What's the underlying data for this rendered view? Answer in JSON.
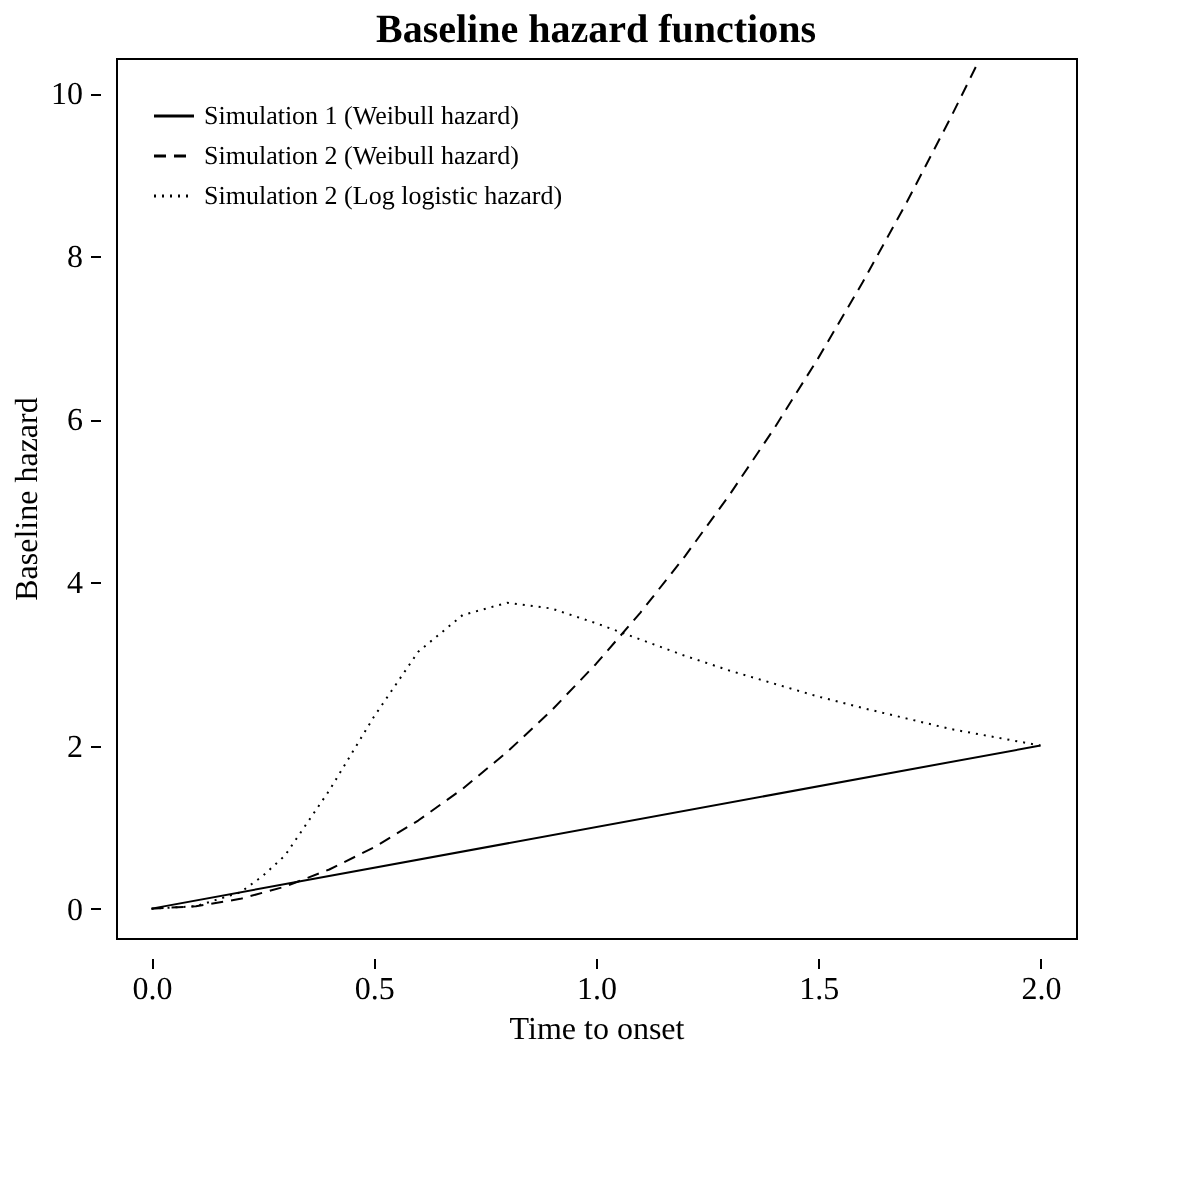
{
  "chart_data": {
    "type": "line",
    "title": "Baseline hazard functions",
    "xlabel": "Time to onset",
    "ylabel": "Baseline hazard",
    "xlim": [
      -0.08,
      2.08
    ],
    "xticks": [
      {
        "value": 0,
        "label": "0.0"
      },
      0.5,
      {
        "value": 1,
        "label": "1.0"
      },
      1.5,
      {
        "value": 2,
        "label": "2.0"
      }
    ],
    "ylim": [
      -0.36,
      10.43
    ],
    "yticks": [
      0,
      2,
      4,
      6,
      8,
      10
    ],
    "grid": false,
    "legend": "top left",
    "marker": "none",
    "series": [
      {
        "name": "Simulation 1 (Weibull hazard)",
        "color": "#000000",
        "line_style": "solid",
        "x": [
          0,
          2
        ],
        "values": [
          0,
          2
        ]
      },
      {
        "name": "Simulation 2 (Weibull hazard)",
        "color": "#000000",
        "line_style": "dashed",
        "x": [
          0,
          0.1,
          0.2,
          0.3,
          0.4,
          0.5,
          0.6,
          0.7,
          0.8,
          0.9,
          1.0,
          1.1,
          1.2,
          1.3,
          1.4,
          1.5,
          1.6,
          1.7,
          1.8,
          1.86
        ],
        "values": [
          0,
          0.03,
          0.12,
          0.27,
          0.48,
          0.75,
          1.08,
          1.47,
          1.92,
          2.43,
          3.0,
          3.63,
          4.32,
          5.07,
          5.88,
          6.75,
          7.68,
          8.67,
          9.72,
          10.38
        ]
      },
      {
        "name": "Simulation 2 (Log logistic hazard)",
        "color": "#000000",
        "line_style": "dotted",
        "x": [
          0,
          0.1,
          0.2,
          0.25,
          0.3,
          0.4,
          0.5,
          0.6,
          0.7,
          0.8,
          0.9,
          1.0,
          1.1,
          1.2,
          1.3,
          1.4,
          1.5,
          1.6,
          1.7,
          1.8,
          1.9,
          2.0
        ],
        "values": [
          0,
          0.03,
          0.2,
          0.4,
          0.65,
          1.45,
          2.35,
          3.15,
          3.6,
          3.75,
          3.68,
          3.5,
          3.3,
          3.1,
          2.92,
          2.76,
          2.6,
          2.46,
          2.33,
          2.2,
          2.1,
          2.0
        ]
      }
    ]
  }
}
